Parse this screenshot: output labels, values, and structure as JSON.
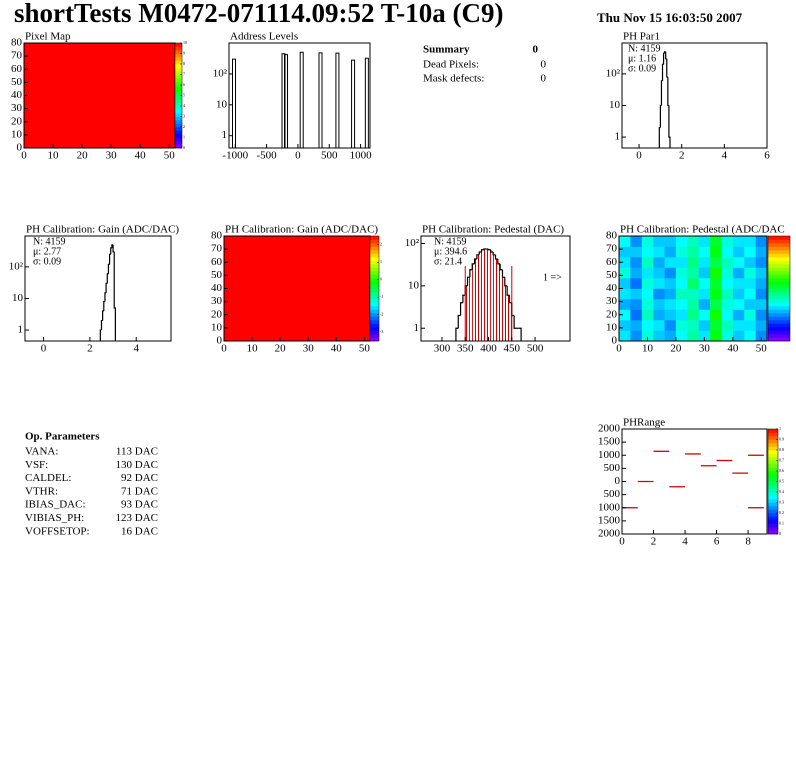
{
  "header": {
    "title": "shortTests M0472-071114.09:52 T-10a (C9)",
    "date": "Thu Nov 15 16:03:50 2007"
  },
  "summary": {
    "title": "Summary",
    "value": 0,
    "rows": [
      {
        "label": "Dead Pixels:",
        "value": 0
      },
      {
        "label": "Mask defects:",
        "value": 0
      }
    ]
  },
  "op_params": {
    "title": "Op. Parameters",
    "rows": [
      {
        "label": "VANA:",
        "value": "113 DAC"
      },
      {
        "label": "VSF:",
        "value": "130 DAC"
      },
      {
        "label": "CALDEL:",
        "value": "92 DAC"
      },
      {
        "label": "VTHR:",
        "value": "71 DAC"
      },
      {
        "label": "IBIAS_DAC:",
        "value": "93 DAC"
      },
      {
        "label": "VIBIAS_PH:",
        "value": "123 DAC"
      },
      {
        "label": "VOFFSETOP:",
        "value": "16 DAC"
      }
    ]
  },
  "chart_data": [
    {
      "type": "heatmap",
      "title": "Pixel Map",
      "z": 10,
      "zlim": [
        0,
        10
      ],
      "zticks": [
        0,
        1,
        2,
        3,
        4,
        5,
        6,
        7,
        8,
        9,
        10
      ],
      "xlim": [
        0,
        52
      ],
      "xticks": [
        0,
        10,
        20,
        30,
        40,
        50
      ],
      "ylim": [
        0,
        80
      ],
      "yticks": [
        0,
        10,
        20,
        30,
        40,
        50,
        60,
        70,
        80
      ]
    },
    {
      "type": "spikes",
      "title": "Address Levels",
      "logy": true,
      "x": [
        -1020,
        -230,
        -190,
        60,
        360,
        630,
        880,
        1100
      ],
      "values": [
        300,
        450,
        420,
        500,
        480,
        470,
        280,
        320
      ],
      "xlim": [
        -1100,
        1150
      ],
      "xticks": [
        -1000,
        -500,
        0,
        500,
        1000
      ],
      "ylim": [
        0.4,
        1000
      ],
      "yticks": [
        1,
        10,
        {
          "value": 100,
          "label": "10²"
        }
      ]
    },
    {
      "type": "histogram",
      "title": "PH Par1",
      "logy": true,
      "bins": [
        0.95,
        1.0,
        1.05,
        1.1,
        1.15,
        1.2,
        1.25,
        1.3,
        1.35,
        1.4,
        1.45
      ],
      "values": [
        2,
        10,
        60,
        200,
        450,
        500,
        300,
        80,
        10,
        1
      ],
      "xlim": [
        -0.8,
        6
      ],
      "xticks": [
        0,
        2,
        4,
        6
      ],
      "ylim": [
        0.45,
        950
      ],
      "yticks": [
        1,
        10,
        {
          "value": 100,
          "label": "10²"
        }
      ],
      "stats": [
        "N: 4159",
        "μ: 1.16",
        "σ: 0.09"
      ],
      "stats_colors": [
        "#000",
        "#000",
        "#000"
      ]
    },
    {
      "type": "histogram",
      "title": "PH Calibration: Gain (ADC/DAC)",
      "logy": true,
      "bins": [
        2.45,
        2.5,
        2.55,
        2.6,
        2.65,
        2.7,
        2.75,
        2.8,
        2.85,
        2.9,
        2.95,
        3.0,
        3.05,
        3.1
      ],
      "values": [
        1,
        2,
        4,
        8,
        15,
        30,
        60,
        120,
        250,
        400,
        500,
        300,
        5
      ],
      "xlim": [
        -0.8,
        5.5
      ],
      "xticks": [
        0,
        2,
        4
      ],
      "ylim": [
        0.45,
        950
      ],
      "yticks": [
        1,
        10,
        {
          "value": 100,
          "label": "10²"
        }
      ],
      "stats": [
        "N: 4159",
        "μ: 2.77",
        "σ: 0.09"
      ],
      "stats_colors": [
        "#000",
        "#000",
        "#000"
      ]
    },
    {
      "type": "heatmap",
      "title": "PH Calibration: Gain (ADC/DAC)",
      "z": 2.5,
      "zlim": [
        -3.5,
        2.5
      ],
      "zticks": [
        -3,
        -2,
        -1,
        0,
        1,
        2
      ],
      "xlim": [
        0,
        52
      ],
      "xticks": [
        0,
        10,
        20,
        30,
        40,
        50
      ],
      "ylim": [
        0,
        80
      ],
      "yticks": [
        0,
        10,
        20,
        30,
        40,
        50,
        60,
        70,
        80
      ]
    },
    {
      "type": "histogram",
      "title": "PH Calibration: Pedestal (DAC)",
      "logy": true,
      "bins": [
        330,
        335,
        340,
        345,
        350,
        355,
        360,
        365,
        370,
        375,
        380,
        385,
        390,
        395,
        400,
        405,
        410,
        415,
        420,
        425,
        430,
        435,
        440,
        445,
        450,
        455,
        460,
        465,
        470
      ],
      "values": [
        1,
        2,
        4,
        6,
        10,
        16,
        24,
        33,
        43,
        54,
        63,
        71,
        74,
        74,
        71,
        63,
        54,
        43,
        33,
        24,
        16,
        10,
        6,
        4,
        2,
        1,
        1,
        1
      ],
      "markers": [
        350,
        450
      ],
      "annotation": "1 =>",
      "xlim": [
        255,
        575
      ],
      "xticks": [
        300,
        350,
        400,
        450,
        500
      ],
      "ylim": [
        0.5,
        150
      ],
      "yticks": [
        1,
        10,
        {
          "value": 100,
          "label": "10²"
        }
      ],
      "stats": [
        "N: 4159",
        "μ: 394.6",
        "σ: 21.4"
      ],
      "stats_colors": [
        "#000",
        "#d00000",
        "#d00000"
      ]
    },
    {
      "type": "heatmap",
      "title": "PH Calibration: Pedestal (ADC/DAC",
      "zlim": [
        300,
        700
      ],
      "grid_values": [
        [
          430,
          400,
          450,
          420,
          410,
          440,
          470,
          430,
          520,
          450,
          420,
          440,
          400
        ],
        [
          420,
          410,
          440,
          430,
          400,
          450,
          460,
          420,
          510,
          460,
          430,
          430,
          410
        ],
        [
          440,
          390,
          460,
          410,
          420,
          430,
          480,
          440,
          530,
          440,
          410,
          450,
          400
        ],
        [
          410,
          400,
          450,
          420,
          430,
          440,
          470,
          410,
          500,
          450,
          440,
          420,
          420
        ],
        [
          430,
          420,
          440,
          400,
          410,
          460,
          460,
          430,
          520,
          460,
          420,
          440,
          400
        ],
        [
          420,
          390,
          450,
          430,
          420,
          440,
          490,
          440,
          510,
          440,
          430,
          430,
          410
        ],
        [
          450,
          410,
          430,
          420,
          400,
          450,
          470,
          420,
          530,
          450,
          410,
          450,
          420
        ],
        [
          430,
          400,
          460,
          410,
          430,
          430,
          480,
          430,
          500,
          460,
          440,
          420,
          400
        ],
        [
          420,
          420,
          440,
          430,
          410,
          450,
          470,
          440,
          520,
          440,
          420,
          440,
          410
        ],
        [
          440,
          400,
          450,
          420,
          420,
          440,
          460,
          430,
          510,
          450,
          430,
          430,
          400
        ]
      ],
      "xlim": [
        0,
        52
      ],
      "xticks": [
        0,
        10,
        20,
        30,
        40,
        50
      ],
      "ylim": [
        0,
        80
      ],
      "yticks": [
        0,
        10,
        20,
        30,
        40,
        50,
        60,
        70,
        80
      ]
    },
    {
      "type": "segments",
      "title": "PHRange",
      "color": "#d00000",
      "x": [
        0.5,
        1.5,
        2.5,
        3.5,
        4.5,
        5.5,
        6.5,
        7.5,
        8.5,
        8.5
      ],
      "values": [
        -1000,
        0,
        1150,
        -200,
        1050,
        600,
        800,
        320,
        1000,
        -1000
      ],
      "zlim": [
        0,
        1
      ],
      "zticks": [
        0,
        0.1,
        0.2,
        0.3,
        0.4,
        0.5,
        0.6,
        0.7,
        0.8,
        0.9,
        1
      ],
      "xlim": [
        0,
        9.2
      ],
      "xticks": [
        0,
        2,
        4,
        6,
        8
      ],
      "ylim": [
        -2000,
        2000
      ],
      "yticks": [
        {
          "value": -2000,
          "label": "2000"
        },
        {
          "value": -1500,
          "label": "1500"
        },
        {
          "value": -1000,
          "label": "1000"
        },
        {
          "value": -500,
          "label": "500"
        },
        0,
        500,
        1000,
        1500,
        2000
      ]
    }
  ]
}
